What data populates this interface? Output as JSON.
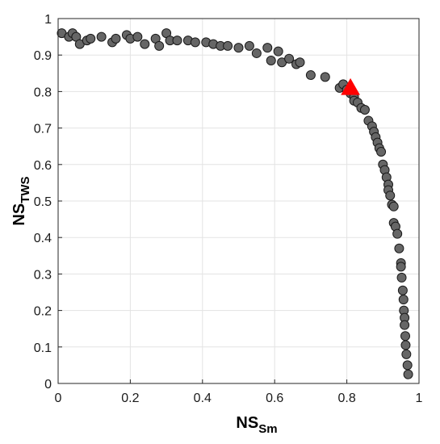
{
  "chart_data": {
    "type": "scatter",
    "title": "",
    "xlabel": {
      "main": "NS",
      "sub": "Sm"
    },
    "ylabel": {
      "main": "NS",
      "sub": "TWS"
    },
    "xlim": [
      0,
      1
    ],
    "ylim": [
      0,
      1
    ],
    "xticks": [
      "0",
      "0.2",
      "0.4",
      "0.6",
      "0.8",
      "1"
    ],
    "yticks": [
      "0",
      "0.1",
      "0.2",
      "0.3",
      "0.4",
      "0.5",
      "0.6",
      "0.7",
      "0.8",
      "0.9",
      "1"
    ],
    "grid": true,
    "series": [
      {
        "marker": "circle",
        "color": "#666666",
        "points": [
          [
            0.01,
            0.96
          ],
          [
            0.03,
            0.95
          ],
          [
            0.04,
            0.96
          ],
          [
            0.05,
            0.95
          ],
          [
            0.06,
            0.93
          ],
          [
            0.08,
            0.94
          ],
          [
            0.09,
            0.945
          ],
          [
            0.12,
            0.95
          ],
          [
            0.15,
            0.935
          ],
          [
            0.16,
            0.945
          ],
          [
            0.19,
            0.955
          ],
          [
            0.2,
            0.945
          ],
          [
            0.22,
            0.95
          ],
          [
            0.24,
            0.93
          ],
          [
            0.27,
            0.945
          ],
          [
            0.28,
            0.925
          ],
          [
            0.3,
            0.96
          ],
          [
            0.31,
            0.94
          ],
          [
            0.33,
            0.94
          ],
          [
            0.36,
            0.94
          ],
          [
            0.38,
            0.935
          ],
          [
            0.41,
            0.935
          ],
          [
            0.43,
            0.93
          ],
          [
            0.45,
            0.925
          ],
          [
            0.47,
            0.925
          ],
          [
            0.5,
            0.92
          ],
          [
            0.53,
            0.925
          ],
          [
            0.55,
            0.905
          ],
          [
            0.58,
            0.92
          ],
          [
            0.59,
            0.885
          ],
          [
            0.61,
            0.91
          ],
          [
            0.62,
            0.88
          ],
          [
            0.64,
            0.89
          ],
          [
            0.66,
            0.875
          ],
          [
            0.67,
            0.88
          ],
          [
            0.7,
            0.845
          ],
          [
            0.74,
            0.84
          ],
          [
            0.78,
            0.81
          ],
          [
            0.79,
            0.82
          ],
          [
            0.8,
            0.805
          ],
          [
            0.81,
            0.795
          ],
          [
            0.82,
            0.785
          ],
          [
            0.82,
            0.775
          ],
          [
            0.83,
            0.77
          ],
          [
            0.84,
            0.755
          ],
          [
            0.85,
            0.75
          ],
          [
            0.86,
            0.72
          ],
          [
            0.87,
            0.705
          ],
          [
            0.875,
            0.69
          ],
          [
            0.88,
            0.675
          ],
          [
            0.885,
            0.66
          ],
          [
            0.89,
            0.645
          ],
          [
            0.895,
            0.635
          ],
          [
            0.9,
            0.6
          ],
          [
            0.905,
            0.585
          ],
          [
            0.91,
            0.565
          ],
          [
            0.915,
            0.545
          ],
          [
            0.915,
            0.53
          ],
          [
            0.92,
            0.515
          ],
          [
            0.925,
            0.49
          ],
          [
            0.93,
            0.485
          ],
          [
            0.93,
            0.44
          ],
          [
            0.935,
            0.43
          ],
          [
            0.94,
            0.41
          ],
          [
            0.945,
            0.37
          ],
          [
            0.95,
            0.33
          ],
          [
            0.95,
            0.32
          ],
          [
            0.952,
            0.29
          ],
          [
            0.955,
            0.255
          ],
          [
            0.957,
            0.23
          ],
          [
            0.958,
            0.2
          ],
          [
            0.96,
            0.18
          ],
          [
            0.96,
            0.16
          ],
          [
            0.962,
            0.13
          ],
          [
            0.963,
            0.105
          ],
          [
            0.965,
            0.08
          ],
          [
            0.968,
            0.05
          ],
          [
            0.97,
            0.025
          ]
        ]
      },
      {
        "marker": "triangle",
        "color": "#ff0000",
        "points": [
          [
            0.81,
            0.81
          ]
        ]
      }
    ]
  }
}
